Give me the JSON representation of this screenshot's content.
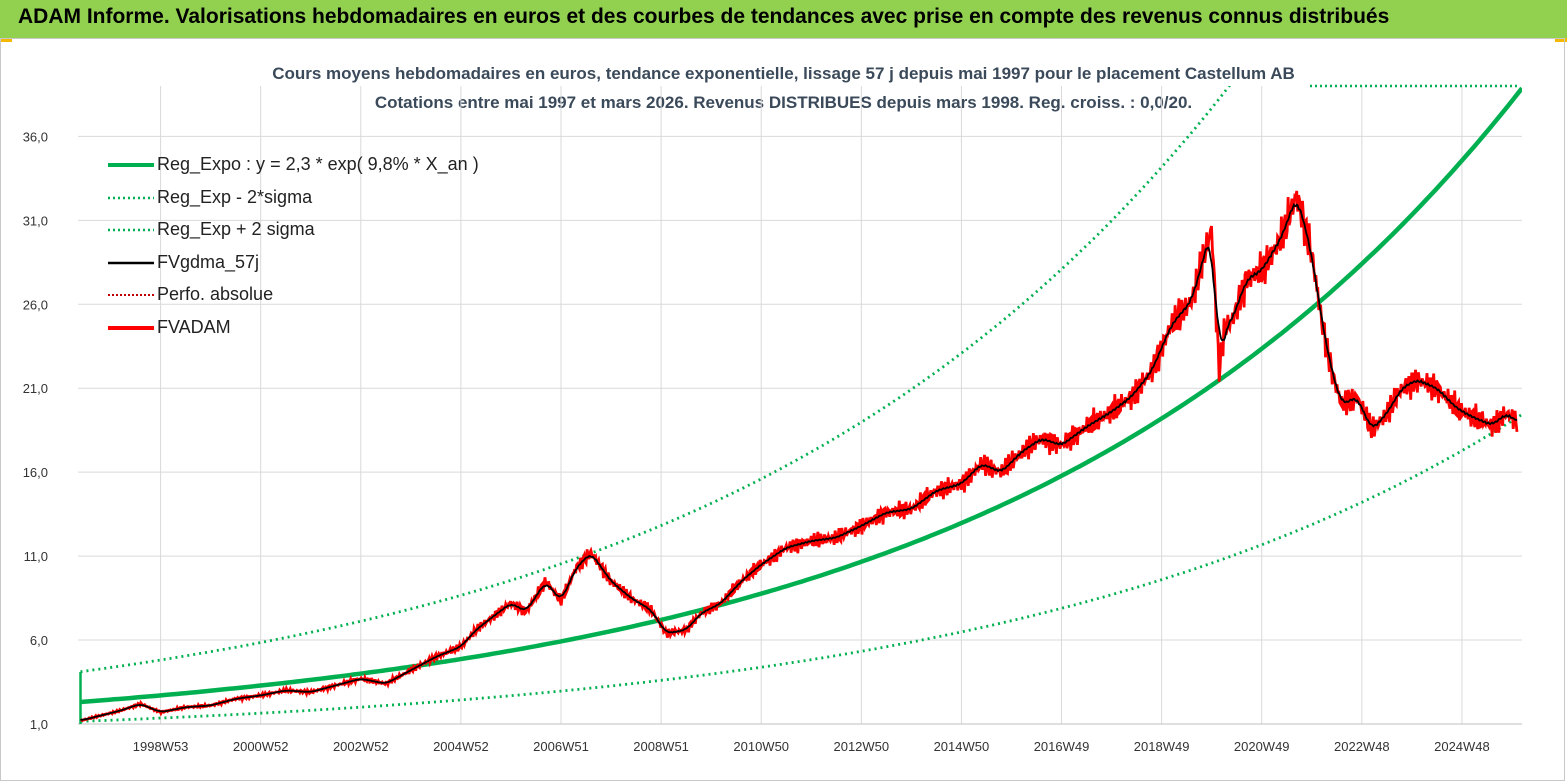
{
  "header": {
    "title": "ADAM Informe. Valorisations hebdomadaires en euros et des courbes de tendances avec prise en compte des revenus connus distribués"
  },
  "colors": {
    "banner": "#92d050",
    "green": "#00b050",
    "red": "#ff0000",
    "black": "#000000",
    "dotted_red": "#c00000"
  },
  "chart_data": {
    "type": "line",
    "title": "Cours moyens hebdomadaires en euros, tendance exponentielle, lissage 57 j depuis mai 1997 pour le placement Castellum AB",
    "subtitle": "Cotations entre mai 1997 et mars 2026. Revenus DISTRIBUES depuis mars 1998. Reg. croiss. : 0,0/20.",
    "xlabel": "",
    "ylabel": "",
    "x_range": [
      1997.35,
      2026.2
    ],
    "ylim": [
      1.0,
      39.0
    ],
    "y_ticks": [
      "1,0",
      "6,0",
      "11,0",
      "16,0",
      "21,0",
      "26,0",
      "31,0",
      "36,0"
    ],
    "y_tick_values": [
      1,
      6,
      11,
      16,
      21,
      26,
      31,
      36
    ],
    "x_ticks": [
      "1998W53",
      "2000W52",
      "2002W52",
      "2004W52",
      "2006W51",
      "2008W51",
      "2010W50",
      "2012W50",
      "2014W50",
      "2016W49",
      "2018W49",
      "2020W49",
      "2022W48",
      "2024W48"
    ],
    "x_tick_years": [
      1999.0,
      2001.0,
      2003.0,
      2005.0,
      2007.0,
      2009.0,
      2011.0,
      2013.0,
      2015.0,
      2017.0,
      2019.0,
      2021.0,
      2023.0,
      2025.0
    ],
    "legend_position": "top-left",
    "legend": [
      {
        "label": "Reg_Expo : y = 2,3 * exp( 9,8% *  X_an )",
        "style": "green-solid"
      },
      {
        "label": "Reg_Exp - 2*sigma",
        "style": "green-dotted"
      },
      {
        "label": "Reg_Exp + 2 sigma",
        "style": "green-dotted"
      },
      {
        "label": "FVgdma_57j",
        "style": "black-solid"
      },
      {
        "label": "Perfo. absolue",
        "style": "red-dotted"
      },
      {
        "label": "FVADAM",
        "style": "red-solid"
      }
    ],
    "series": [
      {
        "name": "Reg_Expo",
        "a": 2.3,
        "rate": 0.098,
        "factor": 1.0
      },
      {
        "name": "Reg_Exp - 2*sigma",
        "a": 2.3,
        "rate": 0.098,
        "factor": 0.5
      },
      {
        "name": "Reg_Exp + 2 sigma",
        "a": 2.3,
        "rate": 0.098,
        "factor": 1.78
      },
      {
        "name": "FVADAM",
        "x": [
          1997.4,
          1997.8,
          1998.2,
          1998.6,
          1999.0,
          1999.5,
          2000.0,
          2000.5,
          2001.0,
          2001.5,
          2002.0,
          2002.5,
          2003.0,
          2003.5,
          2004.0,
          2004.5,
          2005.0,
          2005.3,
          2005.6,
          2006.0,
          2006.3,
          2006.7,
          2007.0,
          2007.3,
          2007.6,
          2008.0,
          2008.4,
          2008.8,
          2009.1,
          2009.5,
          2009.8,
          2010.2,
          2010.6,
          2011.0,
          2011.5,
          2012.0,
          2012.5,
          2013.0,
          2013.5,
          2014.0,
          2014.5,
          2015.0,
          2015.4,
          2015.8,
          2016.2,
          2016.6,
          2017.0,
          2017.5,
          2018.0,
          2018.4,
          2018.8,
          2019.2,
          2019.6,
          2020.0,
          2020.15,
          2020.25,
          2020.4,
          2020.7,
          2021.0,
          2021.4,
          2021.7,
          2022.0,
          2022.2,
          2022.4,
          2022.6,
          2022.9,
          2023.2,
          2023.5,
          2023.8,
          2024.1,
          2024.5,
          2024.9,
          2025.2,
          2025.6,
          2025.9,
          2026.1
        ],
        "values": [
          1.2,
          1.5,
          1.8,
          2.2,
          1.7,
          2.0,
          2.1,
          2.5,
          2.7,
          3.0,
          2.9,
          3.3,
          3.7,
          3.4,
          4.2,
          5.0,
          5.6,
          6.6,
          7.3,
          8.2,
          7.7,
          9.5,
          8.3,
          10.3,
          11.2,
          9.5,
          8.5,
          7.8,
          6.4,
          6.6,
          7.6,
          8.2,
          9.5,
          10.5,
          11.5,
          11.9,
          12.1,
          12.8,
          13.6,
          13.8,
          14.9,
          15.3,
          16.5,
          16.0,
          17.2,
          18.0,
          17.6,
          18.7,
          19.6,
          20.5,
          22.0,
          24.8,
          26.2,
          30.5,
          22.0,
          24.5,
          25.0,
          27.5,
          28.0,
          30.0,
          32.5,
          29.0,
          25.0,
          22.0,
          20.0,
          20.5,
          18.5,
          19.5,
          21.0,
          21.5,
          21.0,
          19.8,
          19.3,
          18.8,
          19.5,
          19.0
        ]
      },
      {
        "name": "FVgdma_57j",
        "derived_from": "FVADAM",
        "smoothing": "moving-average"
      },
      {
        "name": "Perfo. absolue",
        "derived_from": "FVADAM"
      }
    ]
  }
}
